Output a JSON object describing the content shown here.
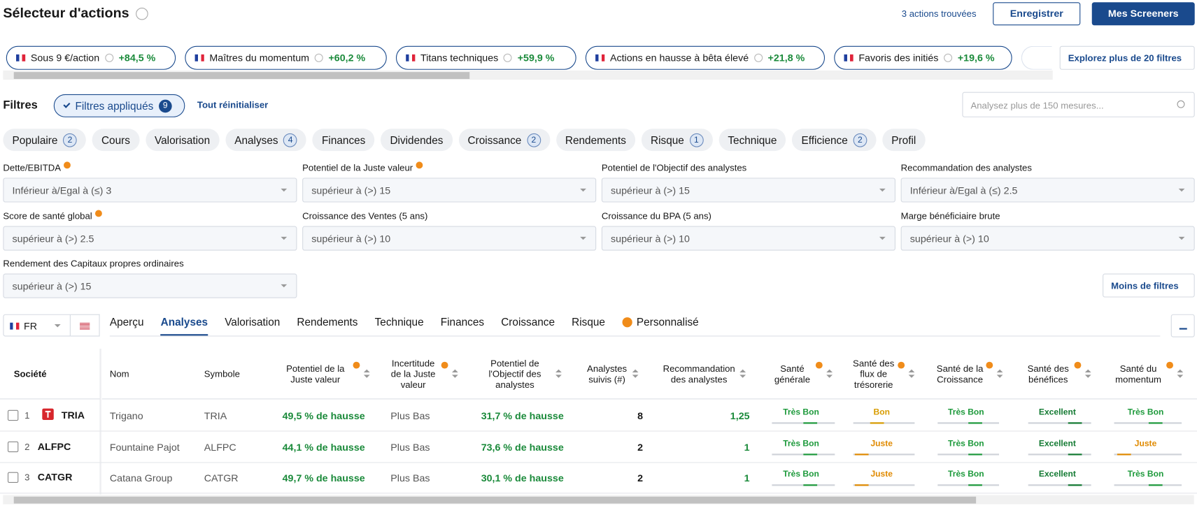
{
  "header": {
    "title": "Sélecteur d'actions",
    "results": "3 actions trouvées",
    "save": "Enregistrer",
    "screeners": "Mes Screeners"
  },
  "presets": {
    "items": [
      {
        "name": "Sous 9 €/action",
        "change": "+84,5 %"
      },
      {
        "name": "Maîtres du momentum",
        "change": "+60,2 %"
      },
      {
        "name": "Titans techniques",
        "change": "+59,9 %"
      },
      {
        "name": "Actions en hausse à bêta élevé",
        "change": "+21,8 %"
      },
      {
        "name": "Favoris des initiés",
        "change": "+19,6 %"
      }
    ],
    "more": "Explorez plus de 20 filtres"
  },
  "filters": {
    "title": "Filtres",
    "applied": "Filtres appliqués",
    "applied_count": 9,
    "reset": "Tout réinitialiser",
    "search": "Analysez plus de 150 mesures...",
    "categories": [
      {
        "name": "Populaire",
        "count": 2
      },
      {
        "name": "Cours"
      },
      {
        "name": "Valorisation"
      },
      {
        "name": "Analyses",
        "count": 4
      },
      {
        "name": "Finances"
      },
      {
        "name": "Dividendes"
      },
      {
        "name": "Croissance",
        "count": 2
      },
      {
        "name": "Rendements"
      },
      {
        "name": "Risque",
        "count": 1
      },
      {
        "name": "Technique"
      },
      {
        "name": "Efficience",
        "count": 2
      },
      {
        "name": "Profil"
      }
    ],
    "criteria": [
      {
        "label": "Dette/EBITDA",
        "pro": true,
        "value": "Inférieur à/Egal à (≤) 3"
      },
      {
        "label": "Potentiel de la Juste valeur",
        "pro": true,
        "value": "supérieur à (>) 15"
      },
      {
        "label": "Potentiel de l'Objectif des analystes",
        "value": "supérieur à (>) 15"
      },
      {
        "label": "Recommandation des analystes",
        "value": "Inférieur à/Egal à (≤) 2.5"
      },
      {
        "label": "Score de santé global",
        "pro": true,
        "value": "supérieur à (>) 2.5"
      },
      {
        "label": "Croissance des Ventes (5 ans)",
        "value": "supérieur à (>) 10"
      },
      {
        "label": "Croissance du BPA (5 ans)",
        "value": "supérieur à (>) 10"
      },
      {
        "label": "Marge bénéficiaire brute",
        "value": "supérieur à (>) 10"
      },
      {
        "label": "Rendement des Capitaux propres ordinaires",
        "value": "supérieur à (>) 15"
      }
    ],
    "less": "Moins de filtres"
  },
  "view": {
    "market": "FR",
    "tabs": [
      {
        "label": "Aperçu"
      },
      {
        "label": "Analyses"
      },
      {
        "label": "Valorisation"
      },
      {
        "label": "Rendements"
      },
      {
        "label": "Technique"
      },
      {
        "label": "Finances"
      },
      {
        "label": "Croissance"
      },
      {
        "label": "Risque"
      },
      {
        "label": "Personnalisé",
        "pro": true
      }
    ],
    "active_tab": 1
  },
  "table": {
    "columns": [
      {
        "label": "Société"
      },
      {
        "label": "Nom"
      },
      {
        "label": "Symbole"
      },
      {
        "label": "Potentiel de la Juste valeur",
        "pro": true,
        "sort": true
      },
      {
        "label": "Incertitude de la Juste valeur",
        "pro": true,
        "sort": true
      },
      {
        "label": "Potentiel de l'Objectif des analystes",
        "sort": true
      },
      {
        "label": "Analystes suivis (#)",
        "sort": true
      },
      {
        "label": "Recommandation des analystes",
        "sort": true
      },
      {
        "label": "Santé générale",
        "pro": true,
        "sort": true
      },
      {
        "label": "Santé des flux de trésorerie",
        "pro": true,
        "sort": true
      },
      {
        "label": "Santé de la Croissance",
        "pro": true,
        "sort": true
      },
      {
        "label": "Santé des bénéfices",
        "pro": true,
        "sort": true
      },
      {
        "label": "Santé du momentum",
        "pro": true,
        "sort": true
      }
    ],
    "rows": [
      {
        "index": 1,
        "ticker": "TRIA",
        "logo": true,
        "cells": [
          "Trigano",
          "TRIA",
          "49,5 % de hausse",
          "Plus Bas",
          "31,7 % de hausse",
          8,
          "1,25",
          "Très Bon",
          "Bon",
          "Très Bon",
          "Excellent",
          "Très Bon"
        ]
      },
      {
        "index": 2,
        "ticker": "ALFPC",
        "cells": [
          "Fountaine Pajot",
          "ALFPC",
          "44,1 % de hausse",
          "Plus Bas",
          "73,6 % de hausse",
          2,
          1,
          "Très Bon",
          "Juste",
          "Très Bon",
          "Excellent",
          "Juste"
        ]
      },
      {
        "index": 3,
        "ticker": "CATGR",
        "cells": [
          "Catana Group",
          "CATGR",
          "49,7 % de hausse",
          "Plus Bas",
          "30,1 % de hausse",
          2,
          1,
          "Très Bon",
          "Juste",
          "Très Bon",
          "Excellent",
          "Très Bon"
        ]
      }
    ]
  }
}
